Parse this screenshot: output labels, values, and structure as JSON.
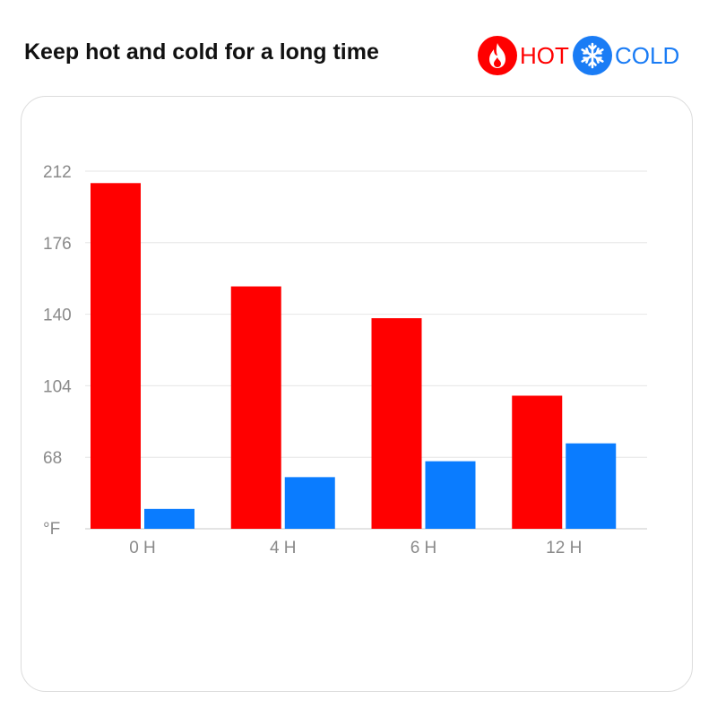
{
  "title": "Keep hot and cold for a long time",
  "legend": {
    "hot": {
      "label": "HOT",
      "icon": "flame-icon",
      "color": "#ff0000"
    },
    "cold": {
      "label": "COLD",
      "icon": "snowflake-icon",
      "color": "#1a7cf5"
    }
  },
  "chart_data": {
    "type": "bar",
    "categories": [
      "0 H",
      "4 H",
      "6 H",
      "12 H"
    ],
    "series": [
      {
        "name": "HOT",
        "color": "#ff0000",
        "values": [
          206,
          154,
          138,
          99
        ]
      },
      {
        "name": "COLD",
        "color": "#0a7cff",
        "values": [
          42,
          58,
          66,
          75
        ]
      }
    ],
    "y_ticks": [
      212,
      176,
      140,
      104,
      68
    ],
    "y_unit_label": "°F",
    "ylim": [
      32,
      212
    ],
    "grid": true
  }
}
